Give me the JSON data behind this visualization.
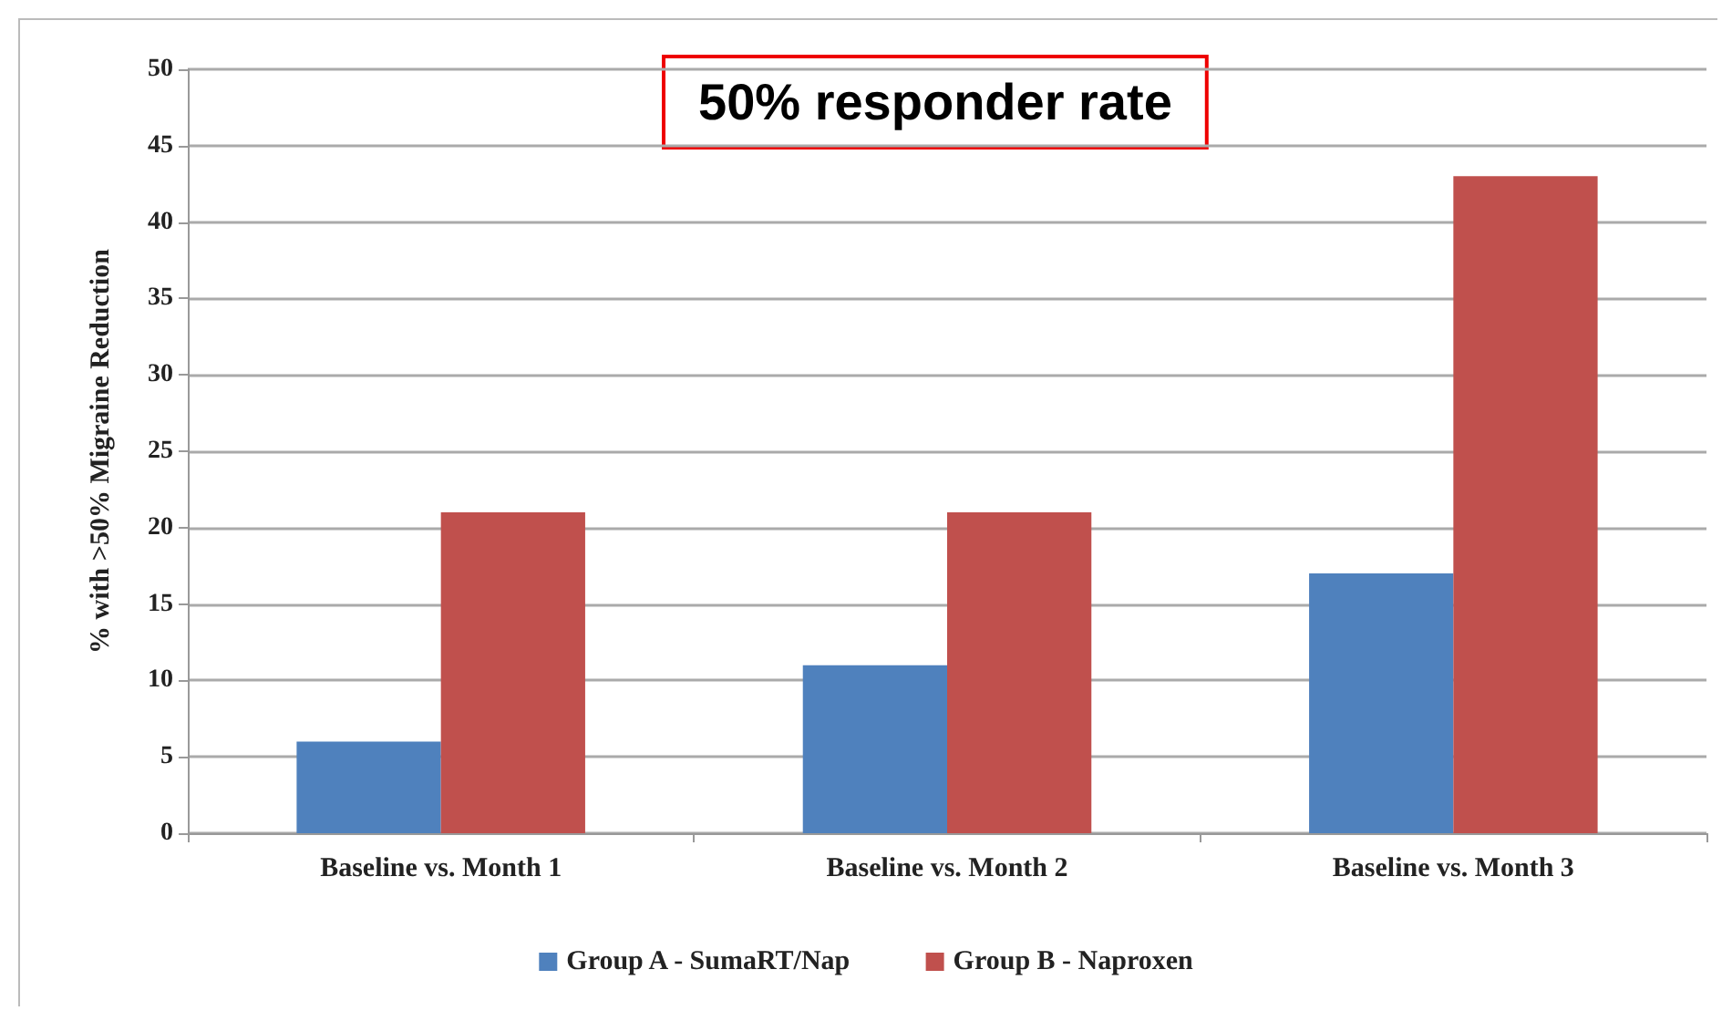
{
  "chart_data": {
    "type": "bar",
    "ylabel": "% with >50% Migraine Reduction",
    "annotations": [
      "50% responder rate"
    ],
    "categories": [
      "Baseline vs. Month 1",
      "Baseline vs. Month 2",
      "Baseline vs. Month 3"
    ],
    "series": [
      {
        "name": "Group A - SumaRT/Nap",
        "color": "#4f81bd",
        "values": [
          6,
          11,
          17
        ]
      },
      {
        "name": "Group B - Naproxen",
        "color": "#c0504d",
        "values": [
          21,
          21,
          43
        ]
      }
    ],
    "ylim": [
      0,
      50
    ],
    "yticks": [
      0,
      5,
      10,
      15,
      20,
      25,
      30,
      35,
      40,
      45,
      50
    ],
    "grid": "y",
    "legend": "bottom"
  }
}
